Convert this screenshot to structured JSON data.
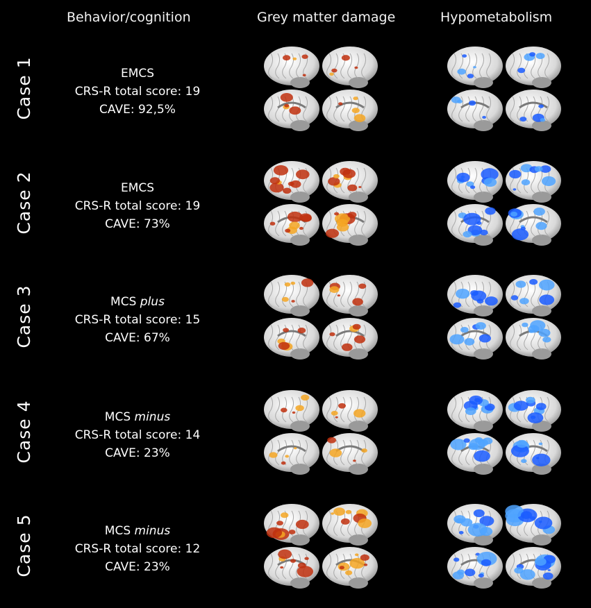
{
  "headers": {
    "behavior": "Behavior/cognition",
    "grey": "Grey matter damage",
    "hypo": "Hypometabolism"
  },
  "cases": [
    {
      "label": "Case  1",
      "diag_prefix": "EMCS",
      "diag_qualifier": "",
      "crs": "CRS-R total score: 19",
      "cave": "CAVE: 92,5%",
      "grey_level": 0.35,
      "hypo_level": 0.3
    },
    {
      "label": "Case  2",
      "diag_prefix": "EMCS",
      "diag_qualifier": "",
      "crs": "CRS-R total score: 19",
      "cave": "CAVE: 73%",
      "grey_level": 0.8,
      "hypo_level": 0.85
    },
    {
      "label": "Case  3",
      "diag_prefix": "MCS ",
      "diag_qualifier": "plus",
      "crs": "CRS-R total score: 15",
      "cave": "CAVE: 67%",
      "grey_level": 0.4,
      "hypo_level": 0.6
    },
    {
      "label": "Case  4",
      "diag_prefix": "MCS ",
      "diag_qualifier": "minus",
      "crs": "CRS-R total score: 14",
      "cave": "CAVE: 23%",
      "grey_level": 0.35,
      "hypo_level": 0.8
    },
    {
      "label": "Case  5",
      "diag_prefix": "MCS ",
      "diag_qualifier": "minus",
      "crs": "CRS-R total score: 12",
      "cave": "CAVE: 23%",
      "grey_level": 0.7,
      "hypo_level": 0.95
    }
  ],
  "colors": {
    "background": "#000000",
    "brain": "#d9d9d9",
    "damage": "#c0300e",
    "damage_hot": "#f5a623",
    "hypometabolism": "#1a5cff",
    "hypometabolism_light": "#4fa3ff"
  }
}
